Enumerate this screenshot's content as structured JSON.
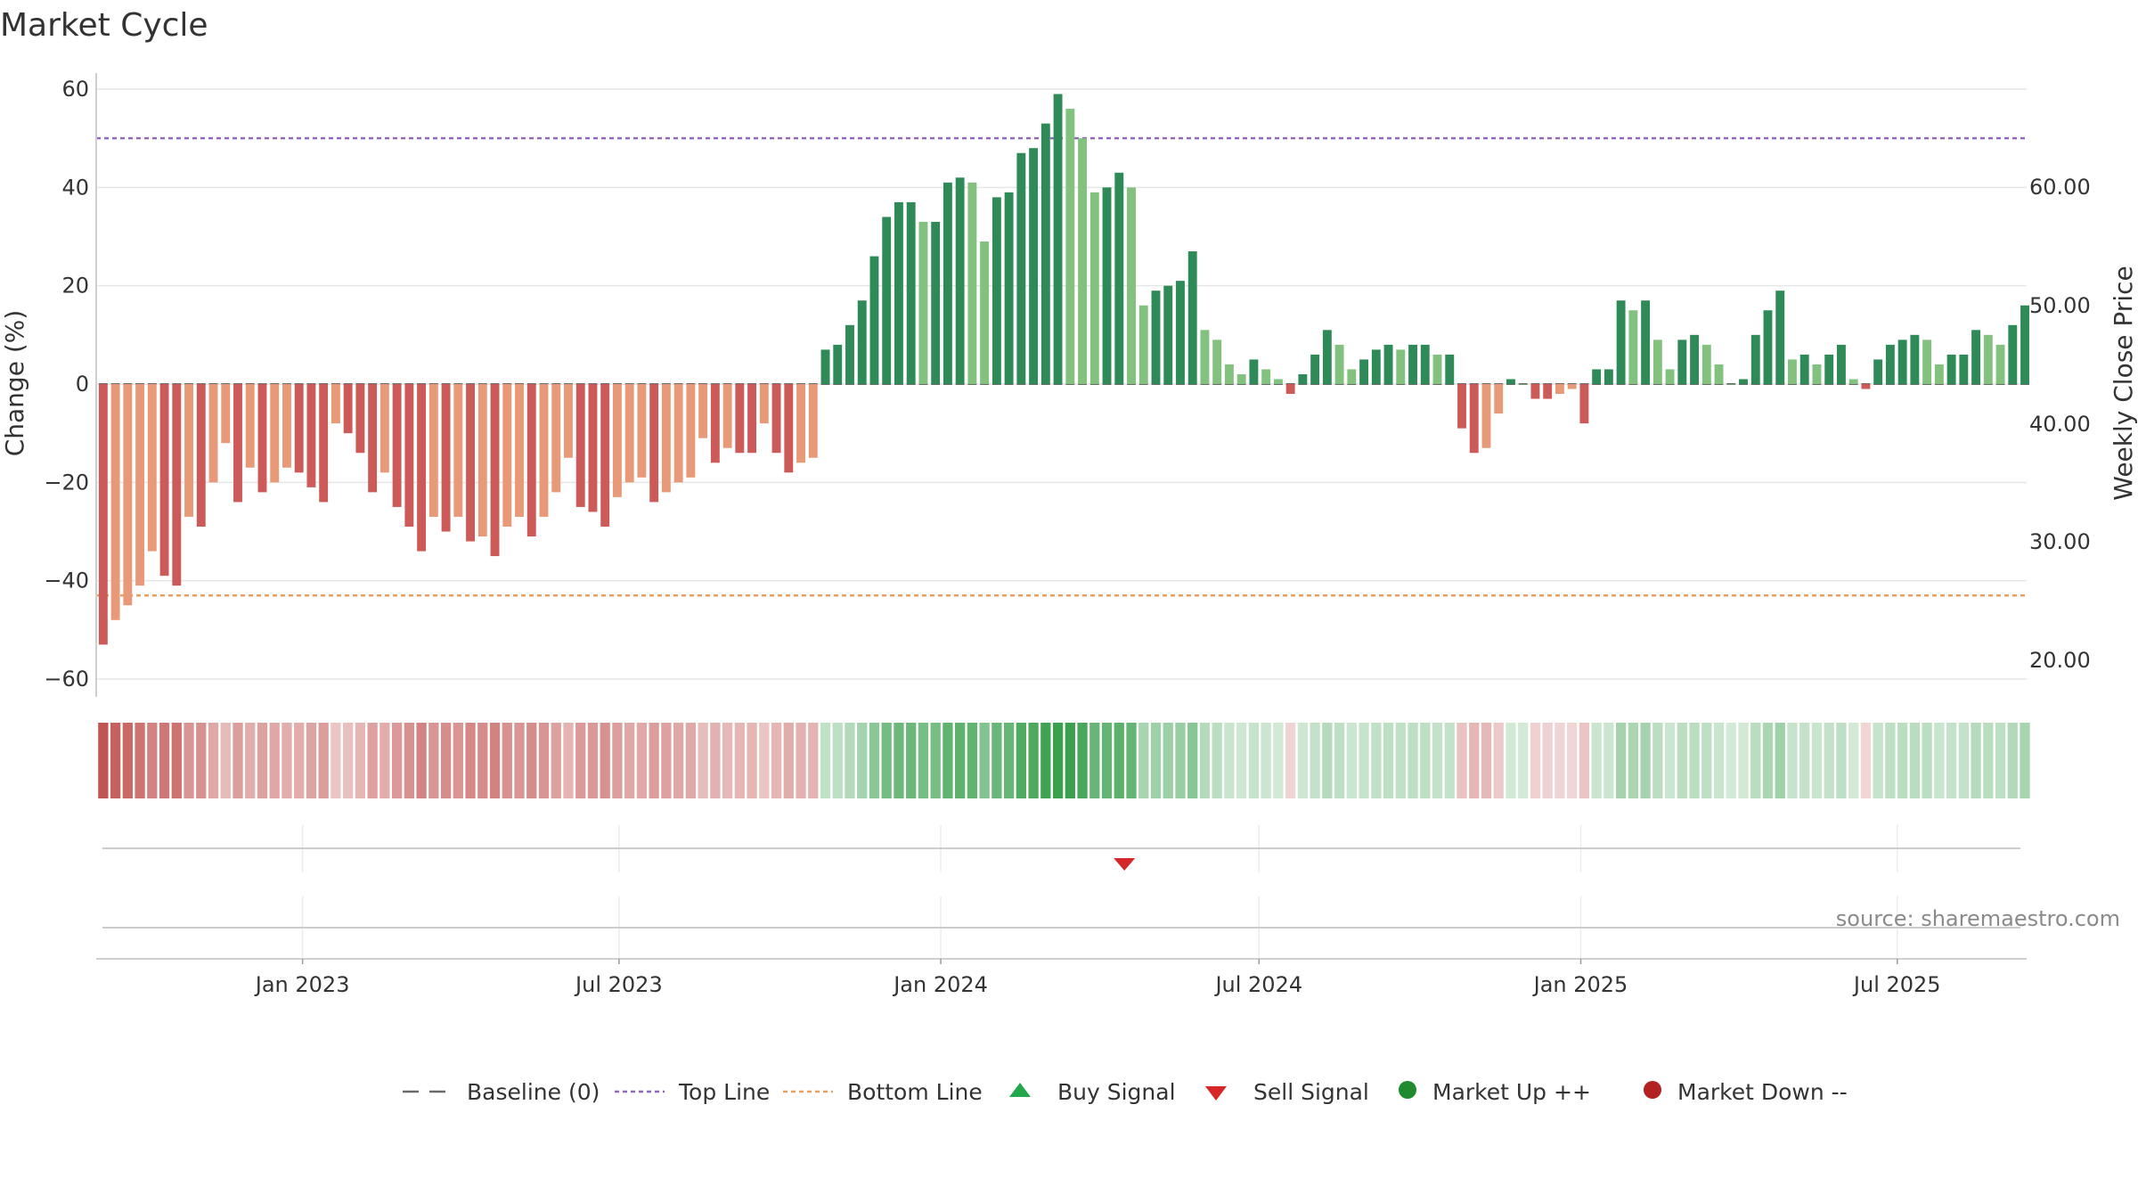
{
  "chart_data": {
    "type": "bar",
    "title": "Market Cycle",
    "ylabel": "Change (%)",
    "y2label": "Weekly Close Price",
    "ylim": [
      -62,
      63
    ],
    "yticks": [
      60,
      40,
      20,
      0,
      -20,
      -40,
      -60
    ],
    "y2lim": [
      15.6,
      68.0
    ],
    "y2ticks": [
      "60.00",
      "50.00",
      "40.00",
      "30.00",
      "20.00"
    ],
    "xlim": [
      "2022-09-05",
      "2025-09-13"
    ],
    "xticks": [
      {
        "label": "Jan 2023",
        "date": "2023-01-01"
      },
      {
        "label": "Jul 2023",
        "date": "2023-07-01"
      },
      {
        "label": "Jan 2024",
        "date": "2024-01-01"
      },
      {
        "label": "Jul 2024",
        "date": "2024-07-01"
      },
      {
        "label": "Jan 2025",
        "date": "2025-01-01"
      },
      {
        "label": "Jul 2025",
        "date": "2025-07-01"
      }
    ],
    "first_week": "2022-09-09",
    "top_line": 50,
    "bottom_line": -43,
    "grid": true,
    "series": [
      {
        "name": "Change (%)",
        "values": [
          -53,
          -48,
          -45,
          -41,
          -34,
          -39,
          -41,
          -27,
          -29,
          -20,
          -12,
          -24,
          -17,
          -22,
          -20,
          -17,
          -18,
          -21,
          -24,
          -8,
          -10,
          -14,
          -22,
          -18,
          -25,
          -29,
          -34,
          -27,
          -30,
          -27,
          -32,
          -31,
          -35,
          -29,
          -27,
          -31,
          -27,
          -22,
          -15,
          -25,
          -26,
          -29,
          -23,
          -20,
          -19,
          -24,
          -22,
          -20,
          -19,
          -11,
          -16,
          -13,
          -14,
          -14,
          -8,
          -14,
          -18,
          -16,
          -15,
          7,
          8,
          12,
          17,
          26,
          34,
          37,
          37,
          33,
          33,
          41,
          42,
          41,
          29,
          38,
          39,
          47,
          48,
          53,
          59,
          56,
          50,
          39,
          40,
          43,
          40,
          16,
          19,
          20,
          21,
          27,
          11,
          9,
          4,
          2,
          5,
          3,
          1,
          -2,
          2,
          6,
          11,
          8,
          3,
          5,
          7,
          8,
          7,
          8,
          8,
          6,
          6,
          -9,
          -14,
          -13,
          -6,
          1,
          0,
          -3,
          -3,
          -2,
          -1,
          -8,
          3,
          3,
          17,
          15,
          17,
          9,
          3,
          9,
          10,
          8,
          4,
          0,
          1,
          10,
          15,
          19,
          5,
          6,
          4,
          6,
          8,
          1,
          -1,
          5,
          8,
          9,
          10,
          9,
          4,
          6,
          6,
          11,
          10,
          8,
          12,
          16
        ]
      }
    ],
    "momentum_band": "color-coded strip under the bars (green = rising, red = falling)",
    "signals": [
      {
        "type": "Sell Signal",
        "date": "2024-04-15"
      }
    ],
    "legend": {
      "placement": "bottom-center",
      "entries": [
        {
          "label": "Baseline (0)",
          "color": "#6b6b6b",
          "style": "dashed-line"
        },
        {
          "label": "Top Line",
          "color": "#9467bd",
          "style": "dotted-line"
        },
        {
          "label": "Bottom Line",
          "color": "#e8a060",
          "style": "dotted-line"
        },
        {
          "label": "Buy Signal",
          "color": "#22a84a",
          "style": "triangle-up"
        },
        {
          "label": "Sell Signal",
          "color": "#d62728",
          "style": "triangle-down"
        },
        {
          "label": "Market Up ++",
          "color": "#1f8a2e",
          "style": "circle"
        },
        {
          "label": "Market Down --",
          "color": "#b22222",
          "style": "circle"
        }
      ]
    },
    "colors": {
      "neg_dark": "#cc5a58",
      "neg_light": "#e89a78",
      "pos_dark": "#2e8b57",
      "pos_light": "#82c17e",
      "top_line": "#9467bd",
      "bottom_line": "#e8a060"
    }
  },
  "source": "source: sharemaestro.com"
}
